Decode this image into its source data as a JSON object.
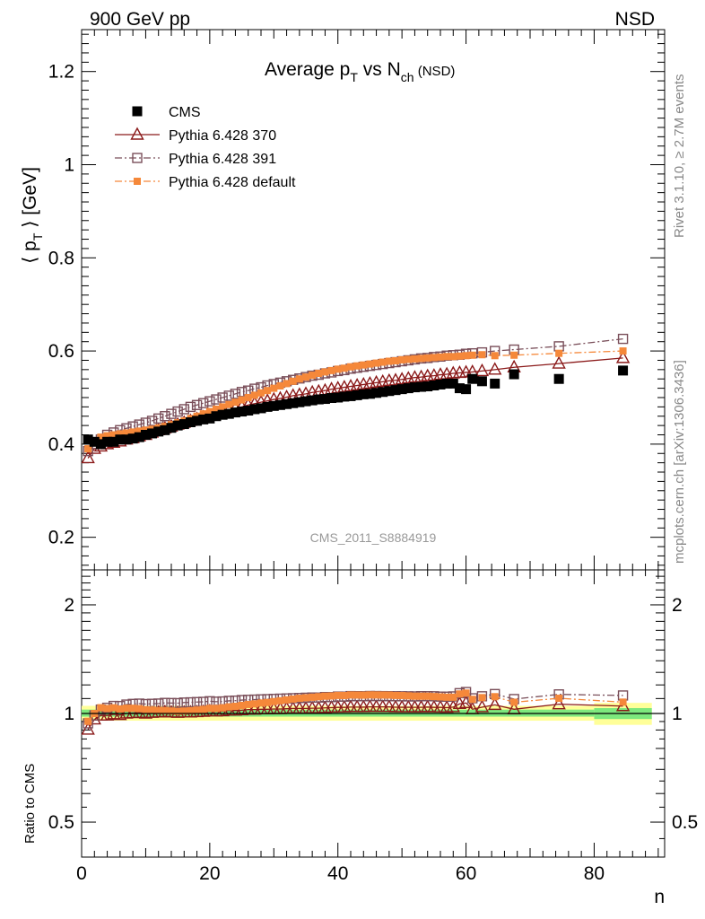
{
  "chart_data": [
    {
      "type": "scatter",
      "panel": "main",
      "title": "Average p_T vs N_ch (NSD)",
      "title_parts": {
        "a": "Average p",
        "a_sub": "T",
        "b": " vs N",
        "b_sub": "ch",
        "c": " (NSD)"
      },
      "header_left": "900 GeV pp",
      "header_right": "NSD",
      "ylabel": "⟨ p_T ⟩ [GeV]",
      "ylabel_parts": {
        "a": "⟨ p",
        "sub": "T",
        "b": " ⟩ [GeV]"
      },
      "xlabel": "n",
      "xlim": [
        0,
        91
      ],
      "ylim": [
        0.13,
        1.29
      ],
      "yticks": [
        0.2,
        0.4,
        0.6,
        0.8,
        1.0,
        1.2
      ],
      "ytick_labels": [
        "0.2",
        "0.4",
        "0.6",
        "0.8",
        "1",
        "1.2"
      ],
      "xticks": [
        0,
        20,
        40,
        60,
        80
      ],
      "xtick_labels": [
        "0",
        "20",
        "40",
        "60",
        "80"
      ],
      "watermark": "CMS_2011_S8884919",
      "side_label_top": "Rivet 3.1.10, ≥ 2.7M events",
      "side_label_bottom": "mcplots.cern.ch [arXiv:1306.3436]",
      "legend_position": "top-left",
      "series": [
        {
          "name": "CMS",
          "color": "#000000",
          "marker": "filled-square",
          "x": [
            1,
            2,
            3,
            4,
            5,
            6,
            7,
            8,
            9,
            10,
            11,
            12,
            13,
            14,
            15,
            16,
            17,
            18,
            19,
            20,
            21,
            22,
            23,
            24,
            25,
            26,
            27,
            28,
            29,
            30,
            31,
            32,
            33,
            34,
            35,
            36,
            37,
            38,
            39,
            40,
            41,
            42,
            43,
            44,
            45,
            46,
            47,
            48,
            49,
            50,
            51,
            52,
            53,
            54,
            55,
            56,
            57,
            58,
            59,
            60,
            61,
            62.5,
            64.5,
            67.5,
            74.5,
            84.5
          ],
          "y": [
            0.41,
            0.405,
            0.4,
            0.405,
            0.405,
            0.41,
            0.41,
            0.412,
            0.415,
            0.42,
            0.423,
            0.427,
            0.43,
            0.435,
            0.44,
            0.443,
            0.447,
            0.45,
            0.453,
            0.455,
            0.46,
            0.463,
            0.465,
            0.468,
            0.47,
            0.472,
            0.475,
            0.477,
            0.48,
            0.482,
            0.484,
            0.486,
            0.488,
            0.49,
            0.492,
            0.494,
            0.496,
            0.497,
            0.499,
            0.5,
            0.502,
            0.503,
            0.505,
            0.507,
            0.508,
            0.51,
            0.512,
            0.514,
            0.516,
            0.518,
            0.52,
            0.522,
            0.523,
            0.524,
            0.526,
            0.528,
            0.53,
            0.53,
            0.52,
            0.518,
            0.54,
            0.535,
            0.53,
            0.55,
            0.54,
            0.558
          ]
        },
        {
          "name": "Pythia 6.428 370",
          "color": "#8b1a1a",
          "marker": "open-triangle",
          "line": "solid",
          "x": [
            1,
            2,
            3,
            4,
            5,
            6,
            7,
            8,
            9,
            10,
            11,
            12,
            13,
            14,
            15,
            16,
            17,
            18,
            19,
            20,
            21,
            22,
            23,
            24,
            25,
            26,
            27,
            28,
            29,
            30,
            31,
            32,
            33,
            34,
            35,
            36,
            37,
            38,
            39,
            40,
            41,
            42,
            43,
            44,
            45,
            46,
            47,
            48,
            49,
            50,
            51,
            52,
            53,
            54,
            55,
            56,
            57,
            58,
            59,
            60,
            61,
            62.5,
            64.5,
            67.5,
            74.5,
            84.5
          ],
          "y": [
            0.37,
            0.39,
            0.395,
            0.4,
            0.403,
            0.406,
            0.41,
            0.413,
            0.417,
            0.42,
            0.425,
            0.43,
            0.434,
            0.438,
            0.442,
            0.446,
            0.45,
            0.454,
            0.458,
            0.462,
            0.466,
            0.47,
            0.474,
            0.477,
            0.48,
            0.484,
            0.487,
            0.49,
            0.493,
            0.496,
            0.498,
            0.501,
            0.504,
            0.506,
            0.508,
            0.511,
            0.513,
            0.515,
            0.518,
            0.52,
            0.522,
            0.524,
            0.526,
            0.528,
            0.53,
            0.532,
            0.534,
            0.536,
            0.537,
            0.539,
            0.541,
            0.543,
            0.544,
            0.546,
            0.547,
            0.549,
            0.55,
            0.552,
            0.553,
            0.554,
            0.555,
            0.557,
            0.56,
            0.565,
            0.573,
            0.585
          ]
        },
        {
          "name": "Pythia 6.428 391",
          "color": "#7a4f5a",
          "marker": "open-square",
          "line": "dash-dot",
          "x": [
            1,
            2,
            3,
            4,
            5,
            6,
            7,
            8,
            9,
            10,
            11,
            12,
            13,
            14,
            15,
            16,
            17,
            18,
            19,
            20,
            21,
            22,
            23,
            24,
            25,
            26,
            27,
            28,
            29,
            30,
            31,
            32,
            33,
            34,
            35,
            36,
            37,
            38,
            39,
            40,
            41,
            42,
            43,
            44,
            45,
            46,
            47,
            48,
            49,
            50,
            51,
            52,
            53,
            54,
            55,
            56,
            57,
            58,
            59,
            60,
            61,
            62.5,
            64.5,
            67.5,
            74.5,
            84.5
          ],
          "y": [
            0.385,
            0.4,
            0.41,
            0.42,
            0.425,
            0.43,
            0.434,
            0.438,
            0.442,
            0.446,
            0.45,
            0.455,
            0.46,
            0.465,
            0.47,
            0.475,
            0.48,
            0.484,
            0.488,
            0.492,
            0.496,
            0.5,
            0.504,
            0.508,
            0.512,
            0.515,
            0.519,
            0.522,
            0.526,
            0.529,
            0.532,
            0.535,
            0.538,
            0.541,
            0.544,
            0.547,
            0.549,
            0.552,
            0.554,
            0.557,
            0.559,
            0.562,
            0.564,
            0.566,
            0.568,
            0.57,
            0.572,
            0.574,
            0.576,
            0.578,
            0.58,
            0.582,
            0.584,
            0.585,
            0.587,
            0.588,
            0.59,
            0.591,
            0.592,
            0.594,
            0.595,
            0.597,
            0.6,
            0.603,
            0.61,
            0.626
          ]
        },
        {
          "name": "Pythia 6.428 default",
          "color": "#f5883a",
          "marker": "filled-square-small",
          "line": "dash-dot",
          "x": [
            1,
            2,
            3,
            4,
            5,
            6,
            7,
            8,
            9,
            10,
            11,
            12,
            13,
            14,
            15,
            16,
            17,
            18,
            19,
            20,
            21,
            22,
            23,
            24,
            25,
            26,
            27,
            28,
            29,
            30,
            31,
            32,
            33,
            34,
            35,
            36,
            37,
            38,
            39,
            40,
            41,
            42,
            43,
            44,
            45,
            46,
            47,
            48,
            49,
            50,
            51,
            52,
            53,
            54,
            55,
            56,
            57,
            58,
            59,
            60,
            61,
            62.5,
            64.5,
            67.5,
            74.5,
            84.5
          ],
          "y": [
            0.39,
            0.405,
            0.415,
            0.418,
            0.42,
            0.422,
            0.424,
            0.426,
            0.428,
            0.43,
            0.432,
            0.435,
            0.438,
            0.442,
            0.446,
            0.45,
            0.455,
            0.46,
            0.465,
            0.47,
            0.475,
            0.48,
            0.485,
            0.49,
            0.495,
            0.5,
            0.505,
            0.51,
            0.515,
            0.52,
            0.525,
            0.53,
            0.535,
            0.54,
            0.544,
            0.548,
            0.552,
            0.555,
            0.558,
            0.561,
            0.563,
            0.566,
            0.568,
            0.57,
            0.572,
            0.574,
            0.576,
            0.578,
            0.579,
            0.581,
            0.582,
            0.583,
            0.584,
            0.585,
            0.586,
            0.587,
            0.588,
            0.588,
            0.589,
            0.59,
            0.591,
            0.592,
            0.59,
            0.591,
            0.595,
            0.6
          ]
        }
      ]
    },
    {
      "type": "scatter",
      "panel": "ratio",
      "ylabel": "Ratio to CMS",
      "xlabel": "n",
      "xlim": [
        0,
        91
      ],
      "ylim": [
        0.4,
        2.5
      ],
      "log_y": true,
      "yticks": [
        0.5,
        1,
        2
      ],
      "ytick_labels": [
        "0.5",
        "1",
        "2"
      ],
      "band_colors": {
        "inner": "#7de87d",
        "outer": "#ffff99"
      },
      "bands": [
        {
          "x0": 0,
          "x1": 80,
          "inner": [
            0.98,
            1.025
          ],
          "outer": [
            0.955,
            1.05
          ]
        },
        {
          "x0": 80,
          "x1": 89,
          "inner": [
            0.965,
            1.035
          ],
          "outer": [
            0.93,
            1.07
          ]
        }
      ]
    }
  ]
}
